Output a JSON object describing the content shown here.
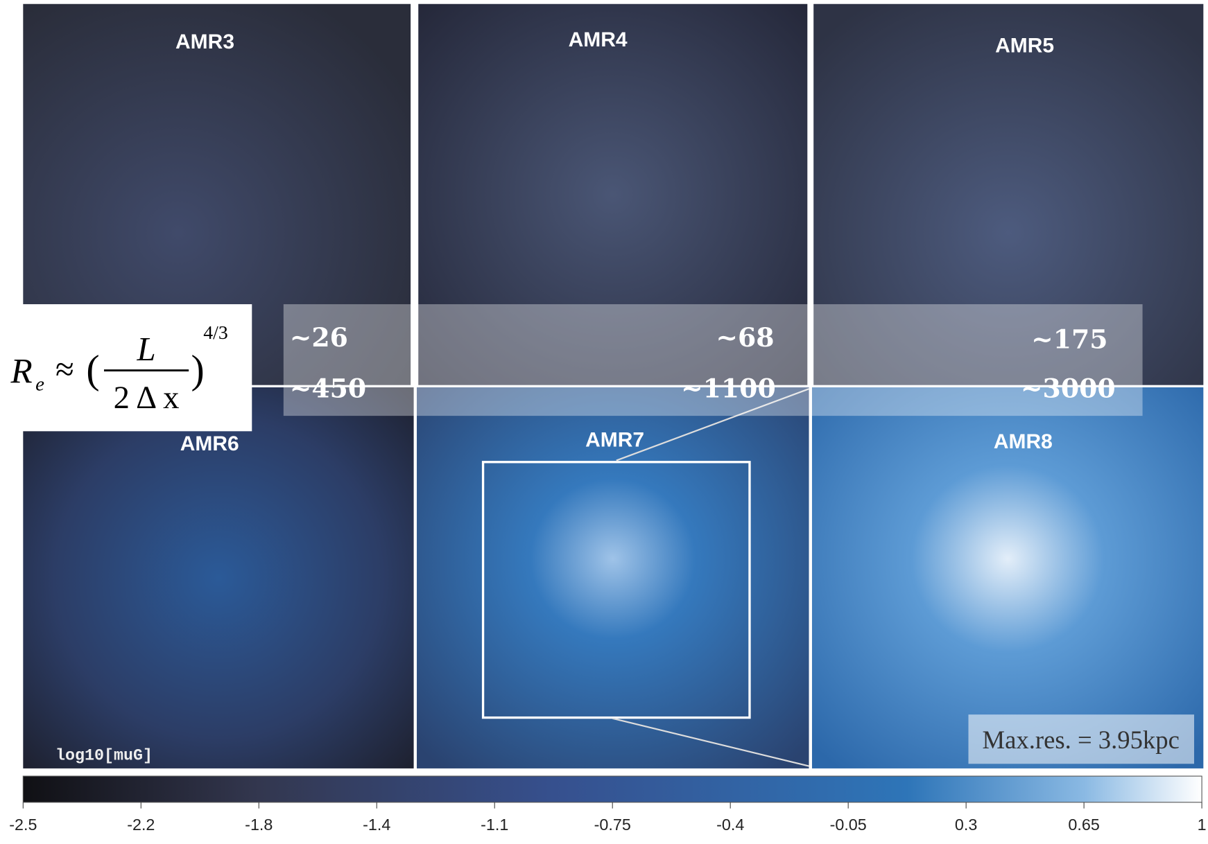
{
  "panels": [
    {
      "label": "AMR3"
    },
    {
      "label": "AMR4"
    },
    {
      "label": "AMR5"
    },
    {
      "label": "AMR6"
    },
    {
      "label": "AMR7"
    },
    {
      "label": "AMR8"
    }
  ],
  "reynolds": {
    "low": [
      "~26",
      "~68",
      "~175"
    ],
    "high": [
      "~450",
      "~1100",
      "~3000"
    ]
  },
  "formula": {
    "lhs": "R",
    "subscript": "e",
    "relation": "≈",
    "numerator": "L",
    "denominator": "2 Δ x",
    "exponent": "4/3"
  },
  "colorbar_label": "log10[muG]",
  "resolution_note": "Max.res. = 3.95kpc",
  "colorbar": {
    "xlim": [
      -2.5,
      1
    ],
    "xticks": [
      -2.5,
      {
        "value": -2.15,
        "label": "-2.2"
      },
      -1.8,
      {
        "value": -1.45,
        "label": "-1.4"
      },
      -1.1,
      -0.75,
      -0.4,
      -0.05,
      0.3,
      0.65,
      1
    ]
  }
}
